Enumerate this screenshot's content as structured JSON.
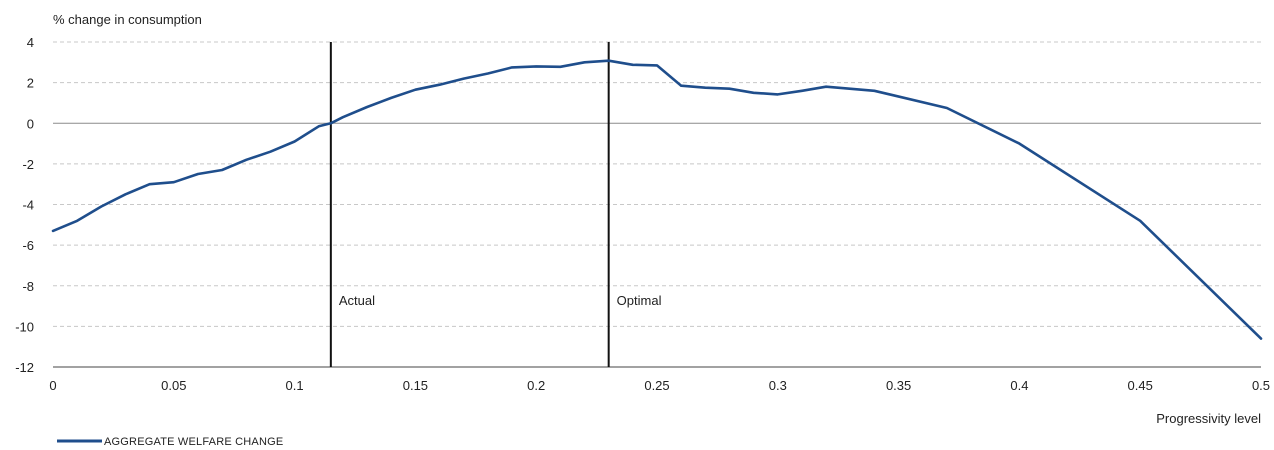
{
  "chart_data": {
    "type": "line",
    "ylabel": "% change in consumption",
    "xlabel": "Progressivity level",
    "xlim": [
      0,
      0.5
    ],
    "ylim": [
      -12,
      4
    ],
    "x_ticks": [
      "0",
      "0.05",
      "0.1",
      "0.15",
      "0.2",
      "0.25",
      "0.3",
      "0.35",
      "0.4",
      "0.45",
      "0.5"
    ],
    "y_ticks": [
      "4",
      "2",
      "0",
      "-2",
      "-4",
      "-6",
      "-8",
      "-10",
      "-12"
    ],
    "grid": "horizontal dashed",
    "legend_position": "bottom-left",
    "series": [
      {
        "name": "AGGREGATE WELFARE CHANGE",
        "color": "#1f4e8c",
        "x": [
          0,
          0.01,
          0.02,
          0.03,
          0.04,
          0.05,
          0.06,
          0.07,
          0.08,
          0.09,
          0.1,
          0.11,
          0.115,
          0.12,
          0.13,
          0.14,
          0.15,
          0.16,
          0.17,
          0.18,
          0.19,
          0.2,
          0.21,
          0.22,
          0.23,
          0.24,
          0.25,
          0.26,
          0.27,
          0.28,
          0.29,
          0.3,
          0.31,
          0.32,
          0.34,
          0.37,
          0.4,
          0.45,
          0.5
        ],
        "y": [
          -5.3,
          -4.8,
          -4.1,
          -3.5,
          -3.0,
          -2.9,
          -2.5,
          -2.3,
          -1.8,
          -1.4,
          -0.9,
          -0.15,
          0.0,
          0.3,
          0.8,
          1.25,
          1.65,
          1.9,
          2.2,
          2.45,
          2.75,
          2.8,
          2.78,
          3.0,
          3.08,
          2.88,
          2.85,
          1.85,
          1.75,
          1.7,
          1.5,
          1.42,
          1.6,
          1.8,
          1.6,
          0.75,
          -1.0,
          -4.8,
          -10.6
        ]
      }
    ],
    "annotations": [
      {
        "label": "Actual",
        "x": 0.115
      },
      {
        "label": "Optimal",
        "x": 0.23
      }
    ]
  }
}
